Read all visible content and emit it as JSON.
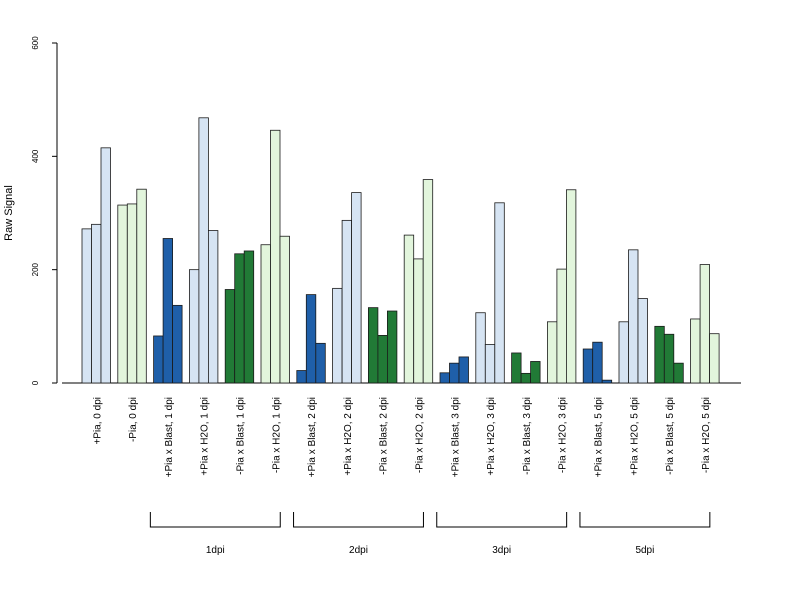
{
  "chart_data": {
    "type": "bar",
    "title": "",
    "xlabel": "",
    "ylabel": "Raw Signal",
    "ylim": [
      0,
      600
    ],
    "yticks": [
      0,
      200,
      400,
      600
    ],
    "grid": false,
    "legend": "none",
    "categories": [
      {
        "label": "+Pia, 0 dpi",
        "color": "#d6e4f3",
        "values": [
          272,
          280,
          415
        ]
      },
      {
        "label": "-Pia, 0 dpi",
        "color": "#e2f5dc",
        "values": [
          314,
          316,
          342
        ]
      },
      {
        "label": "+Pia x Blast, 1 dpi",
        "color": "#1f5fa9",
        "values": [
          83,
          255,
          137
        ]
      },
      {
        "label": "+Pia x H2O, 1 dpi",
        "color": "#d6e4f3",
        "values": [
          200,
          468,
          269
        ]
      },
      {
        "label": "-Pia x Blast, 1 dpi",
        "color": "#217a36",
        "values": [
          165,
          228,
          233
        ]
      },
      {
        "label": "-Pia x H2O, 1 dpi",
        "color": "#e2f5dc",
        "values": [
          244,
          446,
          259
        ]
      },
      {
        "label": "+Pia x Blast, 2 dpi",
        "color": "#1f5fa9",
        "values": [
          22,
          156,
          70
        ]
      },
      {
        "label": "+Pia x H2O, 2 dpi",
        "color": "#d6e4f3",
        "values": [
          167,
          287,
          336
        ]
      },
      {
        "label": "-Pia x Blast, 2 dpi",
        "color": "#217a36",
        "values": [
          133,
          84,
          127
        ]
      },
      {
        "label": "-Pia x H2O, 2 dpi",
        "color": "#e2f5dc",
        "values": [
          261,
          219,
          359
        ]
      },
      {
        "label": "+Pia x Blast, 3 dpi",
        "color": "#1f5fa9",
        "values": [
          18,
          35,
          46
        ]
      },
      {
        "label": "+Pia x H2O, 3 dpi",
        "color": "#d6e4f3",
        "values": [
          124,
          68,
          318
        ]
      },
      {
        "label": "-Pia x Blast, 3 dpi",
        "color": "#217a36",
        "values": [
          53,
          17,
          38
        ]
      },
      {
        "label": "-Pia x H2O, 3 dpi",
        "color": "#e2f5dc",
        "values": [
          108,
          201,
          341
        ]
      },
      {
        "label": "+Pia x Blast, 5 dpi",
        "color": "#1f5fa9",
        "values": [
          60,
          72,
          5
        ]
      },
      {
        "label": "+Pia x H2O, 5 dpi",
        "color": "#d6e4f3",
        "values": [
          108,
          235,
          149
        ]
      },
      {
        "label": "-Pia x Blast, 5 dpi",
        "color": "#217a36",
        "values": [
          100,
          86,
          35
        ]
      },
      {
        "label": "-Pia x H2O, 5 dpi",
        "color": "#e2f5dc",
        "values": [
          113,
          209,
          87
        ]
      }
    ],
    "groups": [
      {
        "label": "1dpi",
        "from": 2,
        "to": 5
      },
      {
        "label": "2dpi",
        "from": 6,
        "to": 9
      },
      {
        "label": "3dpi",
        "from": 10,
        "to": 13
      },
      {
        "label": "5dpi",
        "from": 14,
        "to": 17
      }
    ]
  }
}
